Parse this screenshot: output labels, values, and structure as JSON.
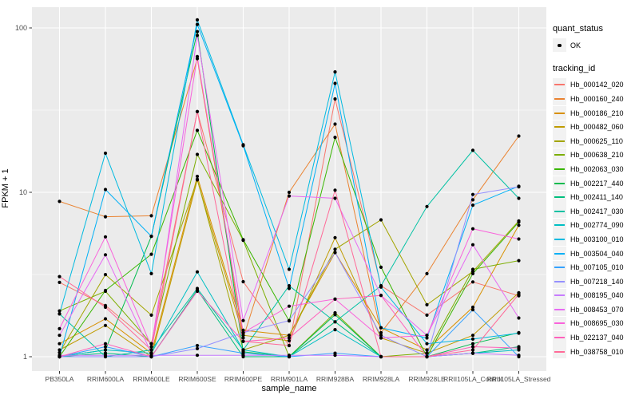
{
  "figure": {
    "xlabel": "sample_name",
    "ylabel": "FPKM + 1"
  },
  "legend": {
    "quant_status_title": "quant_status",
    "quant_status_items": [
      {
        "label": "OK",
        "marker": "black-point"
      }
    ],
    "tracking_id_title": "tracking_id"
  },
  "chart_data": {
    "type": "line",
    "title": "",
    "xlabel": "sample_name",
    "ylabel": "FPKM + 1",
    "y_scale": "log10",
    "y_ticks": [
      1,
      10,
      100
    ],
    "y_range": [
      1,
      130
    ],
    "grid": true,
    "legend_position": "right",
    "marker_color": "#000000",
    "panel_color": "#EBEBEB",
    "categories": [
      "PB350LA",
      "RRIM600LA",
      "RRIM600LE",
      "RRIM600SE",
      "RRIM600PE",
      "RRIM901LA",
      "RRIM928BA",
      "RRIM928LA",
      "RRIM928LE",
      "RRII105LA_Control",
      "RRII105LA_Stressed"
    ],
    "series": [
      {
        "name": "Hb_000142_020",
        "color": "#F8766D",
        "values": [
          2.83,
          2.05,
          1.2,
          31,
          2.86,
          1.17,
          37,
          2.7,
          1.79,
          2.85,
          2.35
        ]
      },
      {
        "name": "Hb_000160_240",
        "color": "#EA8331",
        "values": [
          8.8,
          7.1,
          7.2,
          65,
          1.3,
          10,
          26,
          1.4,
          3.2,
          9.0,
          22
        ]
      },
      {
        "name": "Hb_000186_210",
        "color": "#D89000",
        "values": [
          1.2,
          1.7,
          1.05,
          12.5,
          1.45,
          1.35,
          4.3,
          1.5,
          1.1,
          2.0,
          6.3
        ]
      },
      {
        "name": "Hb_000482_060",
        "color": "#C09B00",
        "values": [
          1.1,
          1.55,
          1.0,
          11.9,
          1.35,
          1.25,
          5.3,
          1.3,
          1.05,
          1.35,
          2.45
        ]
      },
      {
        "name": "Hb_000625_110",
        "color": "#A3A500",
        "values": [
          1.06,
          3.16,
          1.79,
          12,
          1.1,
          1.35,
          4.5,
          6.8,
          2.07,
          3.3,
          6.7
        ]
      },
      {
        "name": "Hb_000638_210",
        "color": "#7CAE00",
        "values": [
          1.9,
          2.5,
          1.2,
          17,
          5.1,
          1.0,
          1.85,
          1.0,
          1.05,
          3.4,
          3.84
        ]
      },
      {
        "name": "Hb_002063_030",
        "color": "#39B600",
        "values": [
          1.0,
          2.53,
          4.2,
          23.8,
          5.15,
          1.65,
          21.6,
          3.5,
          1.0,
          3.2,
          6.6
        ]
      },
      {
        "name": "Hb_002217_440",
        "color": "#00BB4E",
        "values": [
          1.0,
          1.1,
          5.4,
          95,
          1.07,
          1.0,
          1.8,
          1.0,
          1.0,
          1.2,
          1.4
        ]
      },
      {
        "name": "Hb_002411_140",
        "color": "#00BF7D",
        "values": [
          1.0,
          1.05,
          1.0,
          2.55,
          1.0,
          1.0,
          1.63,
          1.0,
          1.0,
          1.05,
          1.15
        ]
      },
      {
        "name": "Hb_002417_030",
        "color": "#00C1A3",
        "values": [
          1.82,
          1.0,
          1.1,
          2.6,
          1.1,
          2.7,
          1.63,
          2.7,
          8.2,
          18,
          9.2
        ]
      },
      {
        "name": "Hb_002774_090",
        "color": "#00BFC4",
        "values": [
          1.0,
          1.1,
          1.05,
          3.28,
          1.1,
          1.0,
          1.46,
          1.0,
          1.0,
          1.05,
          1.1
        ]
      },
      {
        "name": "Hb_003100_010",
        "color": "#00BAE0",
        "values": [
          1.82,
          17.3,
          3.2,
          112,
          19.5,
          3.4,
          54,
          2.65,
          1.2,
          1.28,
          1.39
        ]
      },
      {
        "name": "Hb_003504_040",
        "color": "#00B0F6",
        "values": [
          1.0,
          10.4,
          5.4,
          105,
          19.2,
          2.6,
          46,
          1.5,
          1.3,
          8.35,
          10.9
        ]
      },
      {
        "name": "Hb_007105_010",
        "color": "#35A2FF",
        "values": [
          1.0,
          1.15,
          1.0,
          1.17,
          1.05,
          1.0,
          1.05,
          1.0,
          1.0,
          1.93,
          1.0
        ]
      },
      {
        "name": "Hb_007218_140",
        "color": "#9590FF",
        "values": [
          1.0,
          1.0,
          1.0,
          1.12,
          1.4,
          1.66,
          4.3,
          1.35,
          1.0,
          9.7,
          10.8
        ]
      },
      {
        "name": "Hb_008195_040",
        "color": "#C77CFF",
        "values": [
          1.02,
          1.02,
          1.02,
          1.02,
          1.02,
          1.02,
          1.02,
          1.0,
          1.0,
          1.05,
          1.02
        ]
      },
      {
        "name": "Hb_008453_070",
        "color": "#E76BF3",
        "values": [
          1.35,
          4.17,
          1.05,
          90,
          1.66,
          9.5,
          9.2,
          2.36,
          1.35,
          4.8,
          1.72
        ]
      },
      {
        "name": "Hb_008695_030",
        "color": "#FA62DB",
        "values": [
          1.48,
          5.36,
          1.15,
          67,
          1.4,
          2.03,
          2.24,
          1.3,
          1.35,
          6.0,
          5.2
        ]
      },
      {
        "name": "Hb_022137_040",
        "color": "#FF62BC",
        "values": [
          1.0,
          1.2,
          1.0,
          2.5,
          1.24,
          1.3,
          2.24,
          2.36,
          1.0,
          1.15,
          1.13
        ]
      },
      {
        "name": "Hb_038758_010",
        "color": "#FF6A98",
        "values": [
          3.07,
          2.0,
          1.1,
          31,
          1.24,
          1.17,
          10.3,
          1.0,
          1.0,
          1.1,
          2.4
        ]
      }
    ]
  }
}
